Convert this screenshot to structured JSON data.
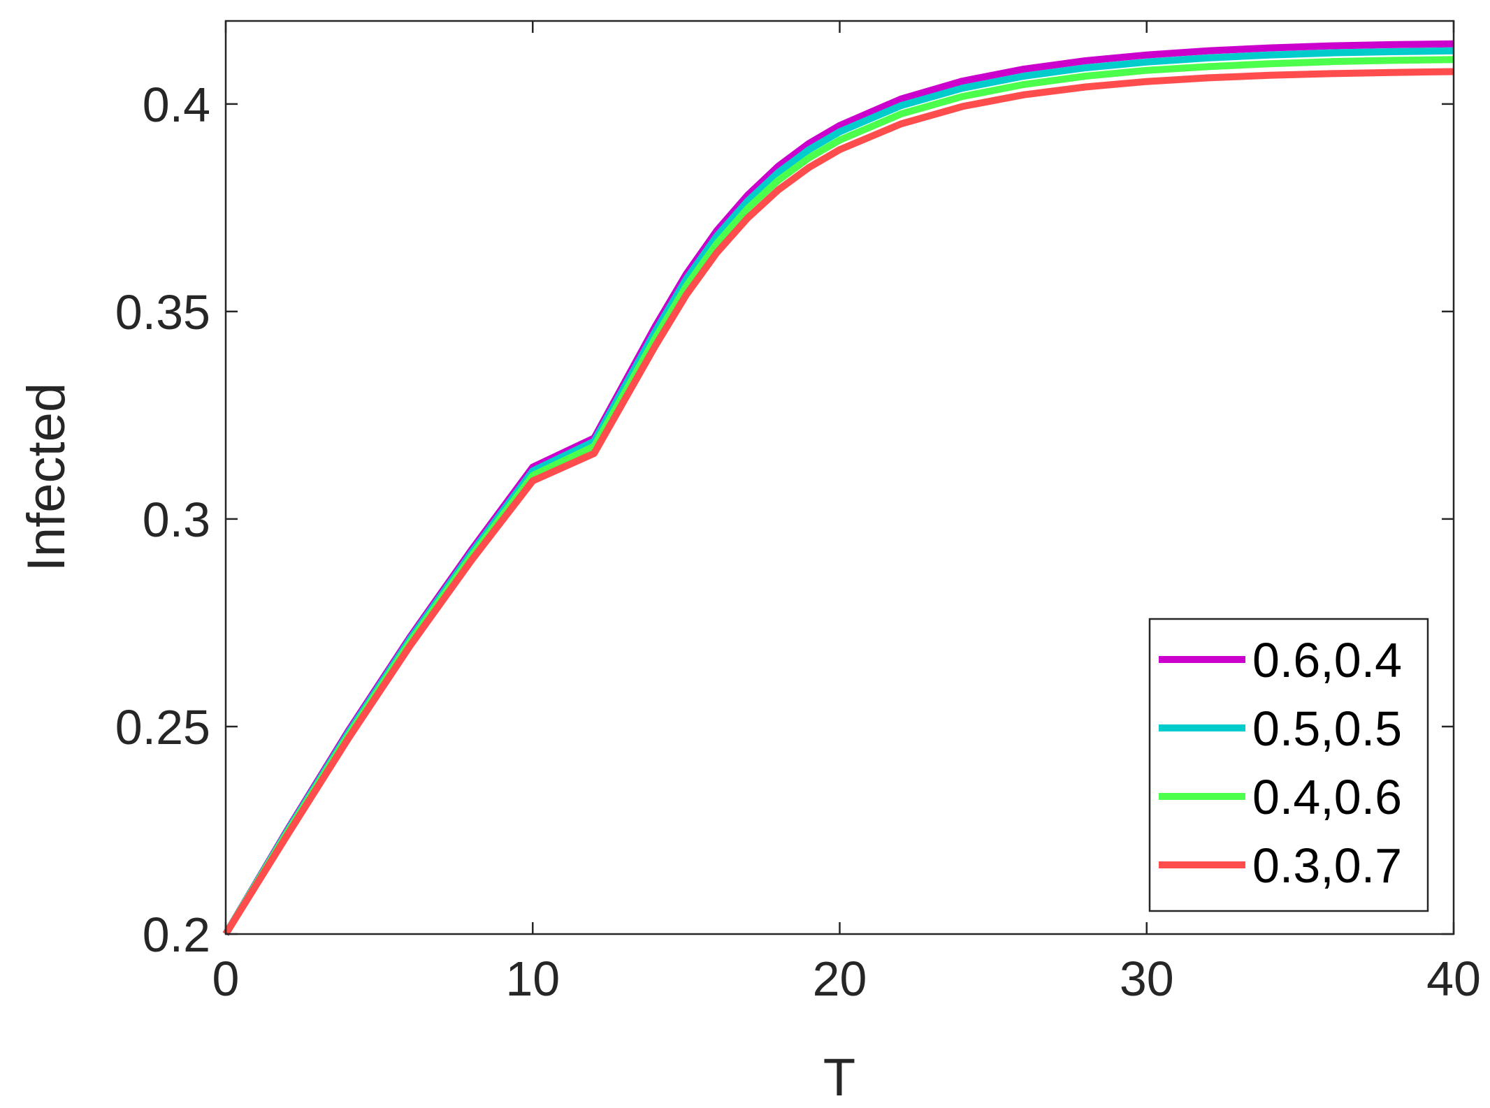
{
  "chart_data": {
    "type": "line",
    "xlabel": "T",
    "ylabel": "Infected",
    "xlim": [
      0,
      40
    ],
    "ylim": [
      0.2,
      0.42
    ],
    "xticks": [
      "0",
      "10",
      "20",
      "30",
      "40"
    ],
    "yticks": [
      "0.2",
      "0.25",
      "0.3",
      "0.35",
      "0.4"
    ],
    "grid": false,
    "legend_position": "bottom-right",
    "x": [
      0,
      2,
      4,
      6,
      8,
      10,
      12,
      13,
      14,
      15,
      16,
      17,
      18,
      19,
      20,
      22,
      24,
      26,
      28,
      30,
      32,
      34,
      36,
      38,
      40
    ],
    "series": [
      {
        "name": "0.6,0.4",
        "color": "#cc00cc",
        "values": [
          0.2,
          0.225,
          0.249,
          0.2715,
          0.2925,
          0.3125,
          0.3195,
          0.333,
          0.3465,
          0.359,
          0.3695,
          0.378,
          0.385,
          0.3905,
          0.3948,
          0.4012,
          0.4055,
          0.4084,
          0.4104,
          0.4118,
          0.4128,
          0.4135,
          0.414,
          0.4143,
          0.4145
        ]
      },
      {
        "name": "0.5,0.5",
        "color": "#00cccc",
        "values": [
          0.2,
          0.2247,
          0.2485,
          0.271,
          0.2918,
          0.3116,
          0.3187,
          0.332,
          0.3453,
          0.3578,
          0.3682,
          0.3766,
          0.3835,
          0.389,
          0.3933,
          0.3996,
          0.4038,
          0.4067,
          0.4087,
          0.4101,
          0.4111,
          0.4118,
          0.4123,
          0.4126,
          0.4128
        ]
      },
      {
        "name": "0.4,0.6",
        "color": "#4dff4d",
        "values": [
          0.2,
          0.2243,
          0.2479,
          0.2703,
          0.291,
          0.3105,
          0.3175,
          0.3305,
          0.3437,
          0.3561,
          0.3664,
          0.3748,
          0.3816,
          0.387,
          0.3913,
          0.3976,
          0.4018,
          0.4047,
          0.4067,
          0.4081,
          0.409,
          0.4097,
          0.4102,
          0.4105,
          0.4107
        ]
      },
      {
        "name": "0.3,0.7",
        "color": "#ff4d4d",
        "values": [
          0.2,
          0.2238,
          0.2472,
          0.2694,
          0.29,
          0.3092,
          0.3158,
          0.3288,
          0.3418,
          0.354,
          0.3642,
          0.3725,
          0.3793,
          0.3847,
          0.389,
          0.3952,
          0.3994,
          0.4022,
          0.4041,
          0.4054,
          0.4063,
          0.4069,
          0.4073,
          0.4076,
          0.4078
        ]
      }
    ]
  }
}
